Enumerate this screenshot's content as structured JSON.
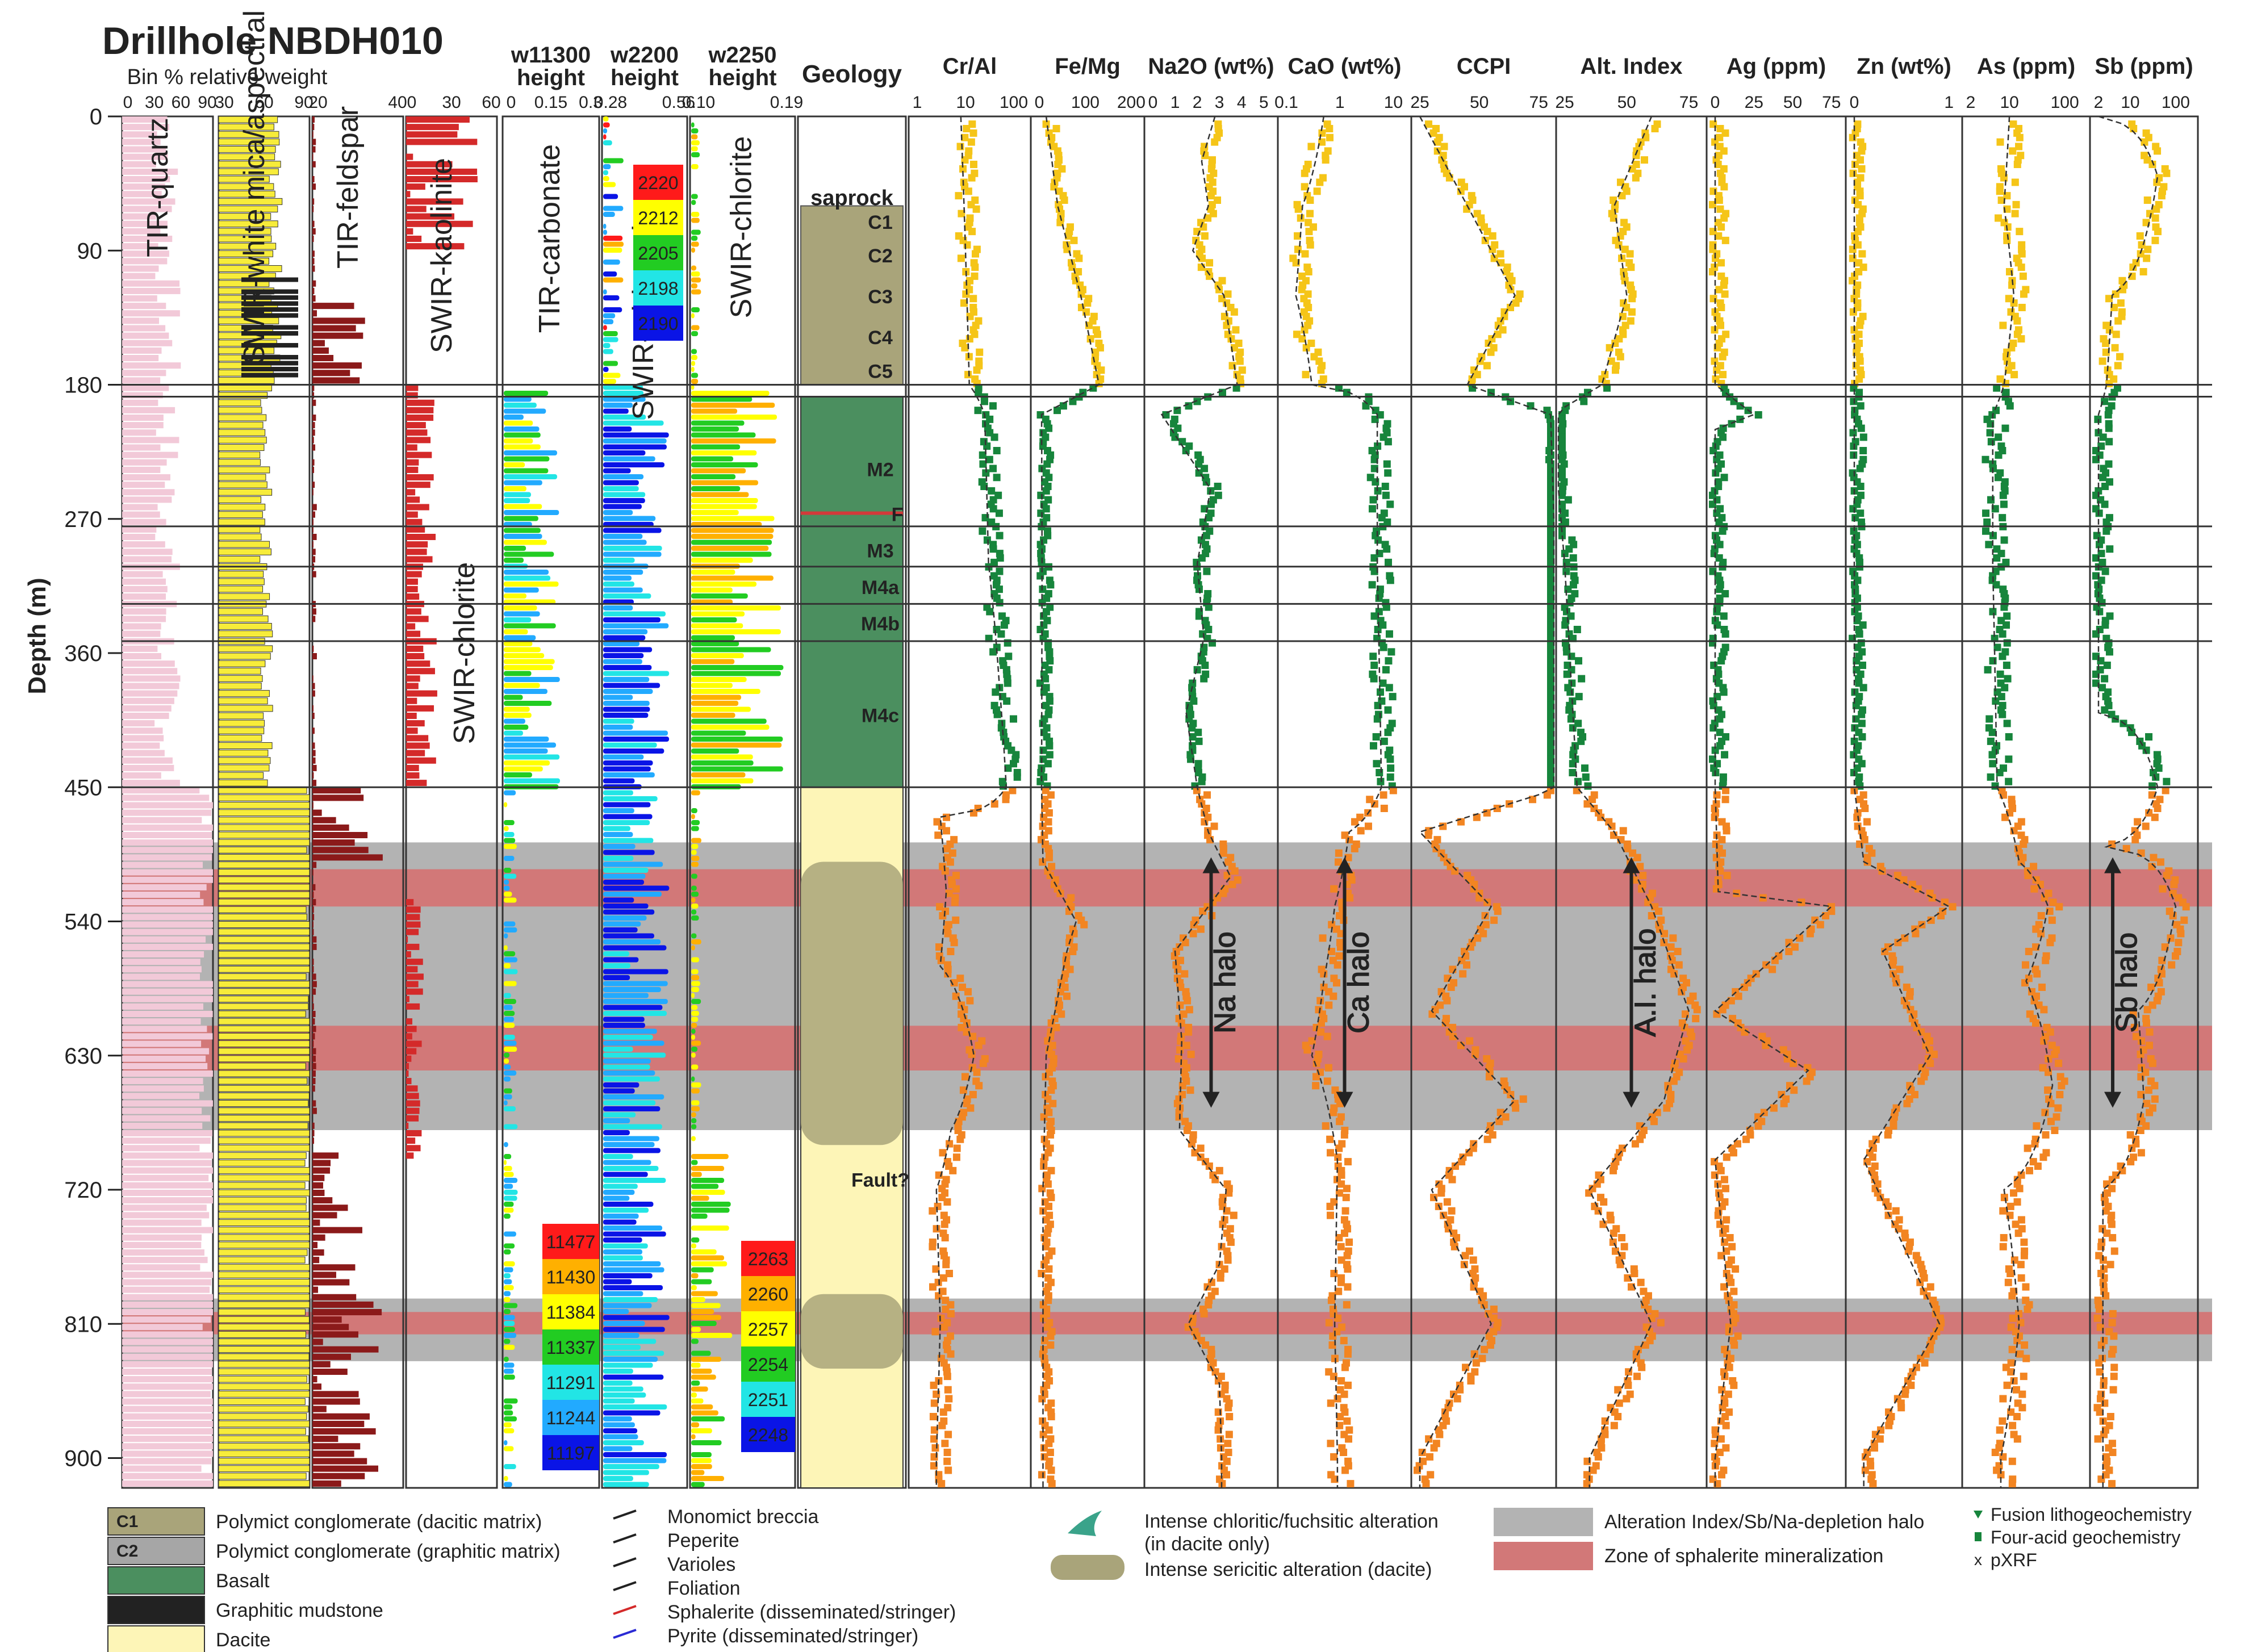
{
  "chart_data": {
    "type": "line",
    "title": "Drillhole NBDH010",
    "ylabel": "Depth (m)",
    "ylim": [
      0,
      920
    ],
    "y_ticks": [
      "0",
      "90",
      "180",
      "270",
      "360",
      "450",
      "540",
      "630",
      "720",
      "810",
      "900"
    ],
    "spectral_group_label": "Bin % relative weight",
    "spectral_columns": [
      {
        "label": "TIR-quartz",
        "ticks": [
          "0",
          "30",
          "60",
          "90"
        ],
        "color": "#f2c9d8"
      },
      {
        "label": "SWIR-white mica/aspectral",
        "ticks": [
          "30",
          "60",
          "90"
        ],
        "color": "#f7ec3a"
      },
      {
        "label": "TIR-feldspar",
        "ticks": [
          "20",
          "40"
        ],
        "color": "#8b1a1a"
      },
      {
        "label": "SWIR-kaolinite",
        "label2": "SWIR-chlorite",
        "ticks": [
          "0",
          "30",
          "60"
        ],
        "color": "#d42a2a"
      }
    ],
    "height_columns": [
      {
        "header": "w11300",
        "header2": "height",
        "label": "TIR-carbonate",
        "ticks": [
          "0",
          "0.15",
          "0.3"
        ]
      },
      {
        "header": "w2200",
        "header2": "height",
        "label": "SWIR-white mica",
        "ticks": [
          "0.28",
          "0.56"
        ]
      },
      {
        "header": "w2250",
        "header2": "height",
        "label": "SWIR-chlorite",
        "ticks": [
          "0.10",
          "0.19"
        ]
      }
    ],
    "wavelength_scales": [
      {
        "values": [
          "2220",
          "2212",
          "2205",
          "2198",
          "2190"
        ],
        "colors": [
          "#ff1a1a",
          "#ffff00",
          "#22cc22",
          "#22e5e5",
          "#0a14e6"
        ]
      },
      {
        "values": [
          "11477",
          "11430",
          "11384",
          "11337",
          "11291",
          "11244",
          "11197"
        ],
        "colors": [
          "#ff1a1a",
          "#ffb000",
          "#ffff00",
          "#22cc22",
          "#22e5e5",
          "#22aaff",
          "#0a14e6"
        ]
      },
      {
        "values": [
          "2263",
          "2260",
          "2257",
          "2254",
          "2251",
          "2248"
        ],
        "colors": [
          "#ff1a1a",
          "#ffb000",
          "#ffff00",
          "#22cc22",
          "#22e5e5",
          "#0a14e6"
        ]
      }
    ],
    "geology": {
      "header": "Geology",
      "units": [
        {
          "label": "saprock",
          "top": 48,
          "bottom": 60
        },
        {
          "label": "C1",
          "top": 60,
          "bottom": 80
        },
        {
          "label": "C2",
          "top": 80,
          "bottom": 105
        },
        {
          "label": "C3",
          "top": 105,
          "bottom": 135
        },
        {
          "label": "C4",
          "top": 135,
          "bottom": 160
        },
        {
          "label": "C5",
          "top": 160,
          "bottom": 180
        },
        {
          "label": "M2",
          "top": 194,
          "bottom": 278
        },
        {
          "label": "F",
          "top": 262,
          "bottom": 270
        },
        {
          "label": "M3",
          "top": 278,
          "bottom": 303
        },
        {
          "label": "M4a",
          "top": 303,
          "bottom": 327
        },
        {
          "label": "M4b",
          "top": 327,
          "bottom": 352
        },
        {
          "label": "M4c",
          "top": 352,
          "bottom": 450
        },
        {
          "label": "Fault?",
          "top": 700,
          "bottom": 725
        }
      ]
    },
    "boundaries_m": [
      180,
      188,
      275,
      302,
      327,
      352,
      450
    ],
    "alteration_halo_m": [
      [
        487,
        680
      ],
      [
        793,
        835
      ]
    ],
    "sphalerite_zones_m": [
      [
        505,
        530
      ],
      [
        610,
        640
      ],
      [
        802,
        817
      ]
    ],
    "halo_labels": [
      "Na halo",
      "Ca halo",
      "A.I. halo",
      "Sb halo"
    ],
    "series": [
      {
        "name": "Cr/Al",
        "scale": "log",
        "ticks": [
          "1",
          "10",
          "100"
        ],
        "depth": [
          0,
          90,
          180,
          200,
          300,
          380,
          450,
          470,
          520,
          570,
          630,
          680,
          720,
          810,
          900
        ],
        "values": [
          8,
          10,
          12,
          25,
          30,
          50,
          70,
          3,
          4,
          3,
          15,
          5,
          2.5,
          3,
          2.5
        ]
      },
      {
        "name": "Fe/Mg",
        "scale": "linear",
        "ticks": [
          "0",
          "100",
          "200"
        ],
        "depth": [
          0,
          60,
          120,
          180,
          200,
          300,
          450,
          500,
          540,
          560,
          630,
          720,
          810,
          900
        ],
        "values": [
          15,
          40,
          90,
          130,
          5,
          6,
          5,
          8,
          80,
          60,
          15,
          8,
          8,
          8
        ]
      },
      {
        "name": "Na2O (wt%)",
        "scale": "linear",
        "ticks": [
          "0",
          "1",
          "2",
          "3",
          "4",
          "5"
        ],
        "depth": [
          0,
          30,
          60,
          90,
          120,
          150,
          180,
          200,
          250,
          300,
          350,
          400,
          450,
          480,
          510,
          560,
          620,
          680,
          720,
          770,
          810,
          850,
          900
        ],
        "values": [
          2.8,
          2.2,
          2.5,
          1.8,
          3.2,
          3.5,
          3.8,
          0.4,
          2.6,
          2.0,
          2.3,
          1.5,
          2.0,
          2.5,
          3.5,
          1.0,
          1.3,
          1.2,
          3.3,
          3.0,
          1.6,
          3.0,
          3.1
        ]
      },
      {
        "name": "CaO (wt%)",
        "scale": "log",
        "ticks": [
          "0.1",
          "1",
          "10"
        ],
        "depth": [
          0,
          60,
          120,
          180,
          200,
          300,
          450,
          480,
          530,
          580,
          630,
          700,
          810,
          900
        ],
        "values": [
          0.5,
          0.2,
          0.15,
          0.3,
          5,
          5,
          6,
          1.5,
          0.8,
          0.5,
          0.3,
          0.9,
          0.8,
          0.9
        ]
      },
      {
        "name": "CCPI",
        "scale": "linear",
        "ticks": [
          "25",
          "50",
          "75"
        ],
        "depth": [
          0,
          60,
          120,
          180,
          200,
          300,
          450,
          480,
          530,
          600,
          660,
          720,
          810,
          900
        ],
        "values": [
          25,
          45,
          65,
          45,
          80,
          82,
          85,
          25,
          55,
          30,
          65,
          30,
          55,
          25
        ]
      },
      {
        "name": "Alt. Index",
        "scale": "linear",
        "ticks": [
          "25",
          "50",
          "75"
        ],
        "depth": [
          0,
          60,
          120,
          180,
          200,
          300,
          450,
          480,
          530,
          600,
          660,
          720,
          810,
          900
        ],
        "values": [
          60,
          45,
          50,
          40,
          20,
          25,
          30,
          45,
          60,
          75,
          65,
          35,
          60,
          35
        ]
      },
      {
        "name": "Ag (ppm)",
        "scale": "linear",
        "ticks": [
          "0",
          "25",
          "50",
          "75"
        ],
        "depth": [
          0,
          90,
          180,
          200,
          210,
          450,
          520,
          530,
          600,
          640,
          700,
          810,
          900
        ],
        "values": [
          0,
          0,
          0,
          25,
          0,
          0,
          2,
          75,
          0,
          60,
          0,
          10,
          0
        ]
      },
      {
        "name": "Zn (wt%)",
        "scale": "linear",
        "ticks": [
          "0",
          "1"
        ],
        "depth": [
          0,
          180,
          450,
          500,
          530,
          560,
          630,
          700,
          810,
          900
        ],
        "values": [
          0,
          0,
          0,
          0.1,
          1.0,
          0.3,
          0.8,
          0.1,
          0.9,
          0.1
        ]
      },
      {
        "name": "As (ppm)",
        "scale": "log",
        "ticks": [
          "2",
          "10",
          "100"
        ],
        "depth": [
          0,
          60,
          120,
          180,
          200,
          300,
          450,
          500,
          530,
          580,
          650,
          720,
          810,
          900
        ],
        "values": [
          10,
          8,
          12,
          8,
          5,
          5,
          6,
          15,
          50,
          20,
          60,
          8,
          15,
          7
        ]
      },
      {
        "name": "Sb (ppm)",
        "scale": "log",
        "ticks": [
          "2",
          "10",
          "100"
        ],
        "depth": [
          0,
          40,
          120,
          180,
          200,
          400,
          450,
          490,
          530,
          600,
          660,
          720,
          810,
          900
        ],
        "values": [
          2,
          40,
          4,
          3,
          2,
          2,
          40,
          3,
          100,
          15,
          20,
          2.5,
          2.5,
          2.5
        ]
      }
    ],
    "legend": {
      "rocks": [
        {
          "code": "C1",
          "label": "Polymict conglomerate (dacitic matrix)",
          "color": "#a9a47a"
        },
        {
          "code": "C2",
          "label": "Polymict conglomerate (graphitic matrix)",
          "color": "#a6a6a6"
        },
        {
          "code": "",
          "label": "Basalt",
          "color": "#4b8f5f"
        },
        {
          "code": "",
          "label": "Graphitic mudstone",
          "color": "#222222"
        },
        {
          "code": "",
          "label": "Dacite",
          "color": "#fdf5b7"
        }
      ],
      "symbols": [
        "Monomict breccia",
        "Peperite",
        "Varioles",
        "Foliation",
        "Sphalerite (disseminated/stringer)",
        "Pyrite (disseminated/stringer)"
      ],
      "alteration": [
        "Intense chloritic/fuchsitic alteration",
        "(in dacite only)",
        "Intense sericitic alteration (dacite)"
      ],
      "zones": [
        {
          "label": "Alteration Index/Sb/Na-depletion halo",
          "color": "#b3b3b3"
        },
        {
          "label": "Zone of sphalerite mineralization",
          "color": "#d27878"
        }
      ],
      "markers": [
        "Fusion lithogeochemistry",
        "Four-acid geochemistry",
        "pXRF"
      ]
    },
    "colors": {
      "saprolite": "#f5c518",
      "basalt": "#17853c",
      "dacite": "#f28522",
      "halo": "#b3b3b3",
      "sphalerite": "#d27878"
    }
  }
}
